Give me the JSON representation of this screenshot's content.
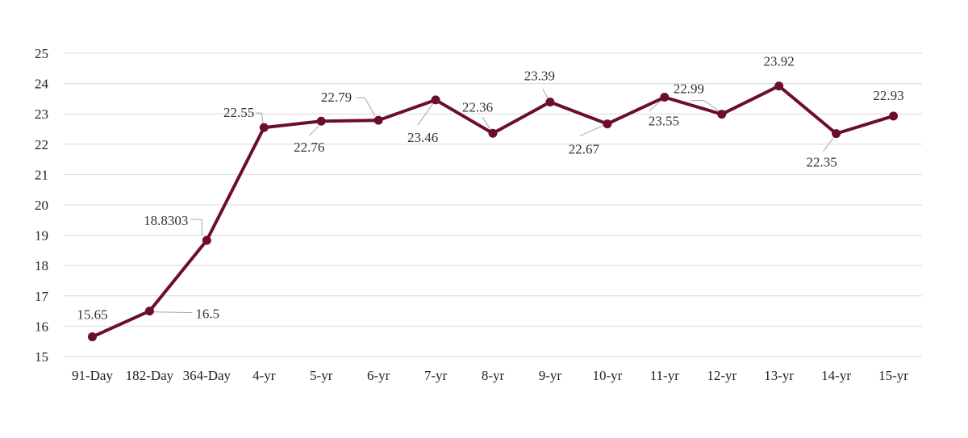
{
  "chart_data": {
    "type": "line",
    "title": "",
    "xlabel": "",
    "ylabel": "",
    "categories": [
      "91-Day",
      "182-Day",
      "364-Day",
      "4-yr",
      "5-yr",
      "6-yr",
      "7-yr",
      "8-yr",
      "9-yr",
      "10-yr",
      "11-yr",
      "12-yr",
      "13-yr",
      "14-yr",
      "15-yr"
    ],
    "series": [
      {
        "values": [
          15.65,
          16.5,
          18.8303,
          22.55,
          22.76,
          22.79,
          23.46,
          22.36,
          23.39,
          22.67,
          23.55,
          22.99,
          23.92,
          22.35,
          22.93
        ],
        "labels": [
          "15.65",
          "16.5",
          "18.8303",
          "22.55",
          "22.76",
          "22.79",
          "23.46",
          "22.36",
          "23.39",
          "22.67",
          "23.55",
          "22.99",
          "23.92",
          "22.35",
          "22.93"
        ],
        "color": "#6b0d33"
      }
    ],
    "ylim": [
      15,
      25
    ],
    "yticks": [
      "15",
      "16",
      "17",
      "18",
      "19",
      "20",
      "21",
      "22",
      "23",
      "24",
      "25"
    ],
    "grid": true,
    "legend": "none"
  }
}
